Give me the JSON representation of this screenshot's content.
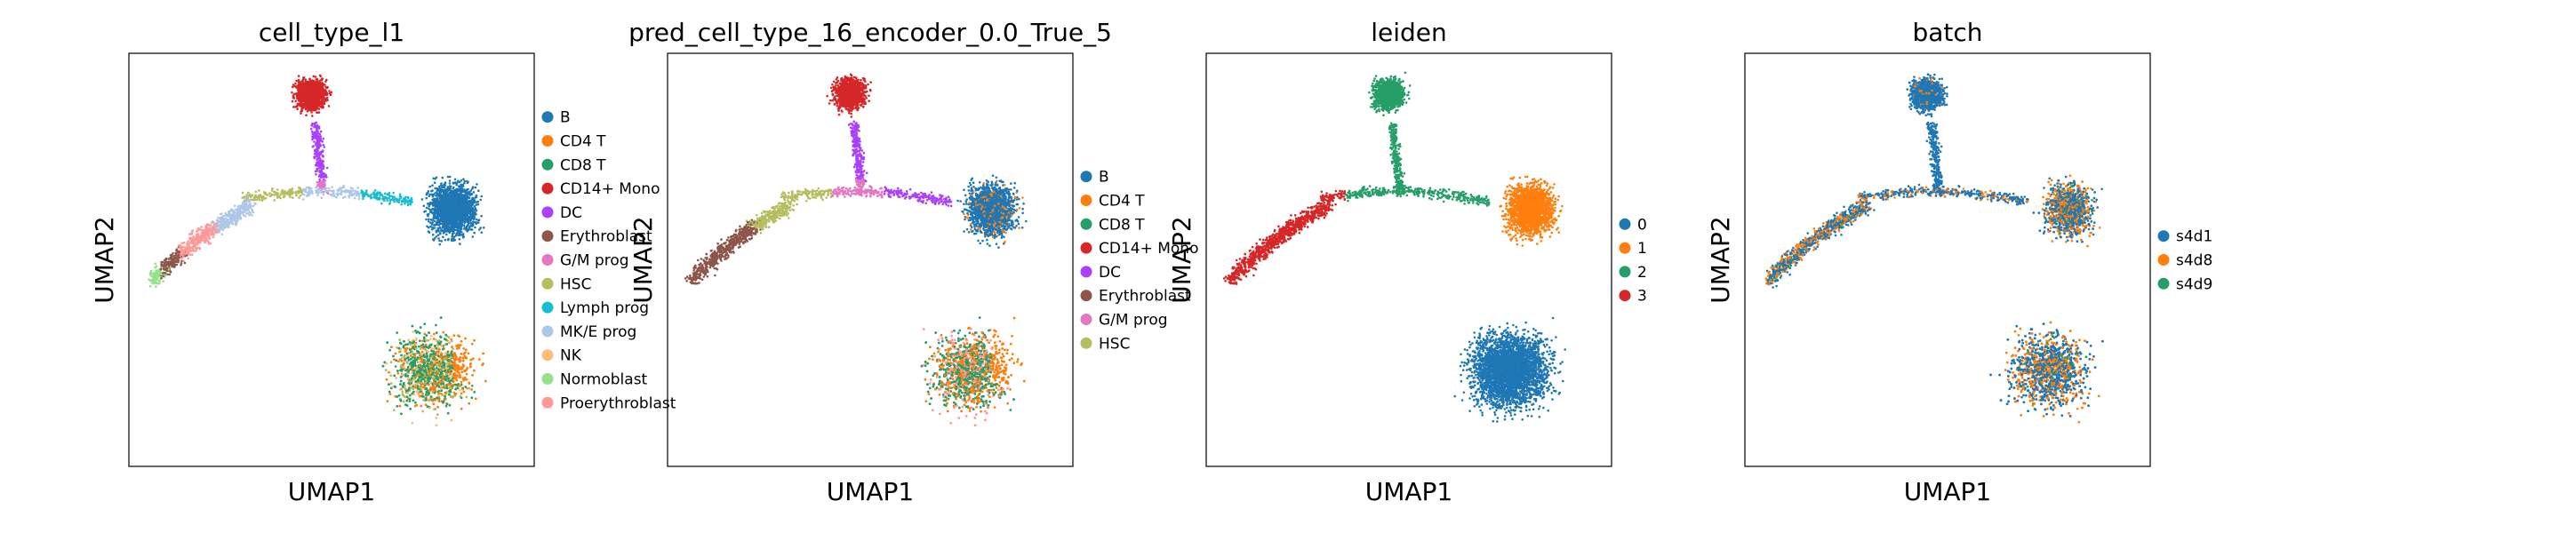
{
  "chart_data": [
    {
      "type": "scatter",
      "title": "cell_type_l1",
      "xlabel": "UMAP1",
      "ylabel": "UMAP2",
      "legend_placement": "right",
      "legend": [
        {
          "name": "B",
          "color": "#1f77b4"
        },
        {
          "name": "CD4 T",
          "color": "#ff7f0e"
        },
        {
          "name": "CD8 T",
          "color": "#279e68"
        },
        {
          "name": "CD14+ Mono",
          "color": "#d62728"
        },
        {
          "name": "DC",
          "color": "#aa40fc"
        },
        {
          "name": "Erythroblast",
          "color": "#8c564b"
        },
        {
          "name": "G/M prog",
          "color": "#e377c2"
        },
        {
          "name": "HSC",
          "color": "#b5bd61"
        },
        {
          "name": "Lymph prog",
          "color": "#17becf"
        },
        {
          "name": "MK/E prog",
          "color": "#aec7e8"
        },
        {
          "name": "NK",
          "color": "#ffbb78"
        },
        {
          "name": "Normoblast",
          "color": "#98df8a"
        },
        {
          "name": "Proerythroblast",
          "color": "#ff9896"
        }
      ]
    },
    {
      "type": "scatter",
      "title": "pred_cell_type_16_encoder_0.0_True_5",
      "xlabel": "UMAP1",
      "ylabel": "UMAP2",
      "legend_placement": "right",
      "legend": [
        {
          "name": "B",
          "color": "#1f77b4"
        },
        {
          "name": "CD4 T",
          "color": "#ff7f0e"
        },
        {
          "name": "CD8 T",
          "color": "#279e68"
        },
        {
          "name": "CD14+ Mono",
          "color": "#d62728"
        },
        {
          "name": "DC",
          "color": "#aa40fc"
        },
        {
          "name": "Erythroblast",
          "color": "#8c564b"
        },
        {
          "name": "G/M prog",
          "color": "#e377c2"
        },
        {
          "name": "HSC",
          "color": "#b5bd61"
        }
      ]
    },
    {
      "type": "scatter",
      "title": "leiden",
      "xlabel": "UMAP1",
      "ylabel": "UMAP2",
      "legend_placement": "right",
      "legend": [
        {
          "name": "0",
          "color": "#1f77b4"
        },
        {
          "name": "1",
          "color": "#ff7f0e"
        },
        {
          "name": "2",
          "color": "#279e68"
        },
        {
          "name": "3",
          "color": "#d62728"
        }
      ]
    },
    {
      "type": "scatter",
      "title": "batch",
      "xlabel": "UMAP1",
      "ylabel": "UMAP2",
      "legend_placement": "right",
      "legend": [
        {
          "name": "s4d1",
          "color": "#1f77b4"
        },
        {
          "name": "s4d8",
          "color": "#ff7f0e"
        },
        {
          "name": "s4d9",
          "color": "#279e68"
        }
      ]
    }
  ]
}
